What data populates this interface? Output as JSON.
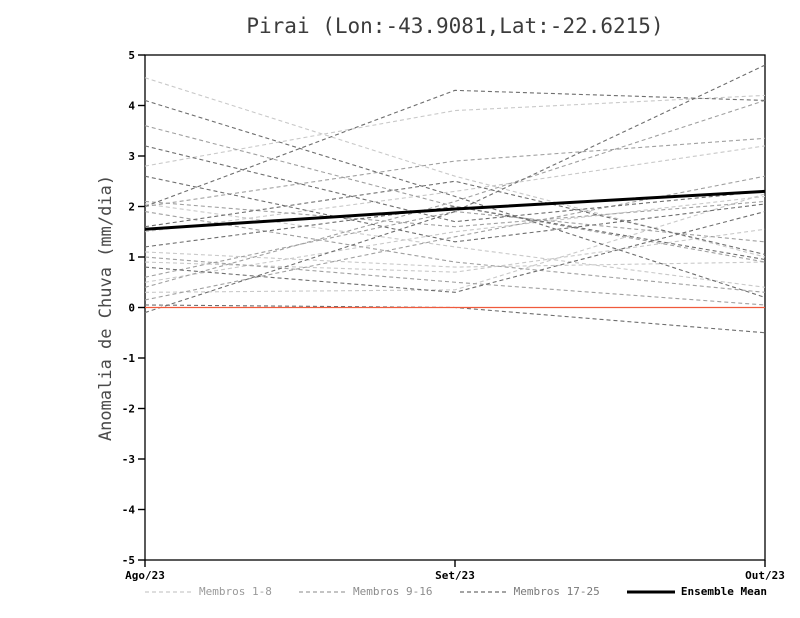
{
  "title": "Pirai (Lon:-43.9081,Lat:-22.6215)",
  "ylabel": "Anomalia de Chuva (mm/dia)",
  "chart_data": {
    "type": "line",
    "categories": [
      "Ago/23",
      "Set/23",
      "Out/23"
    ],
    "ylim": [
      -5,
      5
    ],
    "ytick_step": 1,
    "grid": false,
    "legend_position": "bottom",
    "zero_line": {
      "y": 0,
      "color": "#f05a3c"
    },
    "groups": [
      {
        "name": "Membros 1-8",
        "color": "#c9c9c9",
        "members": [
          [
            4.55,
            2.6,
            1.0
          ],
          [
            2.8,
            3.9,
            4.2
          ],
          [
            1.1,
            0.8,
            0.9
          ],
          [
            0.5,
            1.5,
            2.2
          ],
          [
            2.05,
            1.2,
            0.4
          ],
          [
            0.3,
            0.35,
            2.25
          ],
          [
            1.5,
            2.3,
            3.2
          ],
          [
            0.9,
            0.7,
            1.55
          ]
        ]
      },
      {
        "name": "Membros 9-16",
        "color": "#a0a0a0",
        "members": [
          [
            3.6,
            2.0,
            0.9
          ],
          [
            2.1,
            1.6,
            2.1
          ],
          [
            0.4,
            2.1,
            4.1
          ],
          [
            1.9,
            0.9,
            0.3
          ],
          [
            0.15,
            1.4,
            2.6
          ],
          [
            2.0,
            2.9,
            3.35
          ],
          [
            1.0,
            0.5,
            0.05
          ],
          [
            0.6,
            1.9,
            1.3
          ]
        ]
      },
      {
        "name": "Membros 17-25",
        "color": "#6e6e6e",
        "members": [
          [
            4.1,
            2.2,
            0.2
          ],
          [
            -0.1,
            1.9,
            4.8
          ],
          [
            2.0,
            4.3,
            4.1
          ],
          [
            0.05,
            0.0,
            -0.5
          ],
          [
            1.6,
            2.5,
            1.05
          ],
          [
            3.2,
            1.7,
            2.3
          ],
          [
            0.8,
            0.3,
            1.9
          ],
          [
            1.2,
            2.0,
            0.95
          ],
          [
            2.6,
            1.3,
            2.05
          ]
        ]
      }
    ],
    "ensemble_mean": {
      "name": "Ensemble Mean",
      "color": "#000000",
      "values": [
        1.55,
        1.95,
        2.3
      ]
    }
  },
  "legend": {
    "items": [
      {
        "label": "Membros 1-8",
        "color": "#c9c9c9",
        "label_color": "#9a9a9a",
        "style": "dashed"
      },
      {
        "label": "Membros 9-16",
        "color": "#a0a0a0",
        "label_color": "#8c8c8c",
        "style": "dashed"
      },
      {
        "label": "Membros 17-25",
        "color": "#6e6e6e",
        "label_color": "#7a7a7a",
        "style": "dashed"
      },
      {
        "label": "Ensemble Mean",
        "color": "#000000",
        "label_color": "#000000",
        "style": "solid"
      }
    ]
  }
}
